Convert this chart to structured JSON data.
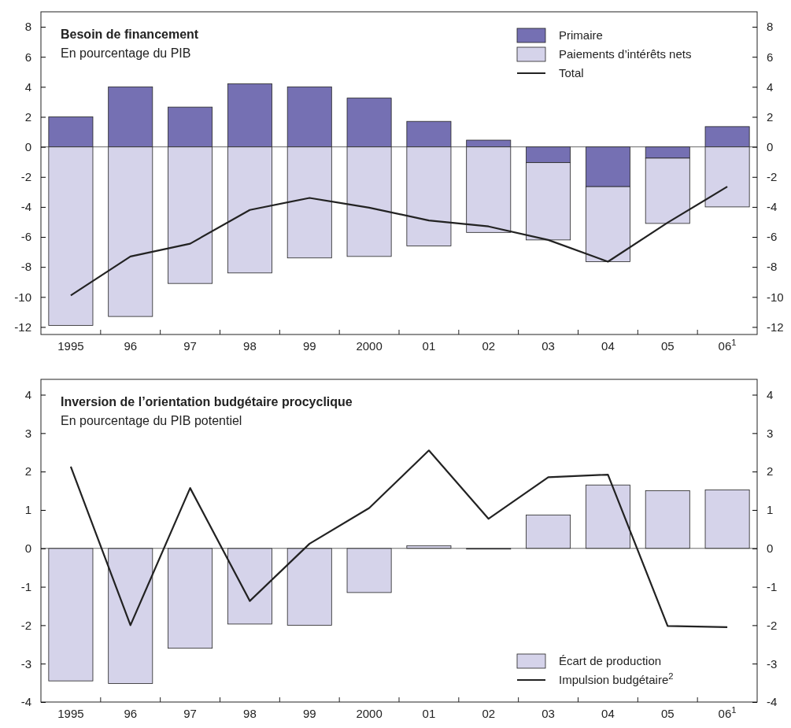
{
  "chart_data": [
    {
      "type": "bar",
      "title": "Besoin de financement",
      "subtitle": "En pourcentage du PIB",
      "stacked": true,
      "categories": [
        "1995",
        "96",
        "97",
        "98",
        "99",
        "2000",
        "01",
        "02",
        "03",
        "04",
        "05",
        "06$^{1}$"
      ],
      "series": [
        {
          "name": "Primaire",
          "color": "#7570b3",
          "values": [
            2.0,
            4.0,
            2.65,
            4.2,
            4.0,
            3.25,
            1.7,
            0.45,
            -1.05,
            -2.65,
            -0.75,
            1.35
          ]
        },
        {
          "name": "Paiements d’intérêts nets",
          "color": "#d5d3ea",
          "values": [
            -11.9,
            -11.3,
            -9.1,
            -8.4,
            -7.4,
            -7.3,
            -6.6,
            -5.7,
            -5.15,
            -5.0,
            -4.35,
            -4.0
          ]
        },
        {
          "name": "Total",
          "type": "line",
          "color": "#222222",
          "values": [
            -9.9,
            -7.3,
            -6.45,
            -4.2,
            -3.4,
            -4.05,
            -4.9,
            -5.3,
            -6.2,
            -7.65,
            -5.05,
            -2.65
          ]
        }
      ],
      "ylim": [
        -12.5,
        9
      ],
      "yticks": [
        -12,
        -10,
        -8,
        -6,
        -4,
        -2,
        0,
        2,
        4,
        6,
        8
      ],
      "y2lim": [
        -12.5,
        9
      ],
      "y2ticks": [
        -12,
        -10,
        -8,
        -6,
        -4,
        -2,
        0,
        2,
        4,
        6,
        8
      ],
      "ref_lines": [
        {
          "axis": "y",
          "value": 0,
          "color": "#444444"
        }
      ],
      "legend": "top right",
      "grid": false
    },
    {
      "type": "bar",
      "title": "Inversion de l’orientation budgétaire procyclique",
      "subtitle": "En pourcentage du PIB potentiel",
      "categories": [
        "1995",
        "96",
        "97",
        "98",
        "99",
        "2000",
        "01",
        "02",
        "03",
        "04",
        "05",
        "06$^{1}$"
      ],
      "series": [
        {
          "name": "Écart de production",
          "color": "#d5d3ea",
          "values": [
            -3.45,
            -3.52,
            -2.6,
            -1.97,
            -2.0,
            -1.15,
            0.07,
            -0.02,
            0.87,
            1.65,
            1.5,
            1.52
          ]
        },
        {
          "name": "Impulsion budgétaire$^{2}$",
          "type": "line",
          "color": "#222222",
          "values": [
            2.13,
            -2.0,
            1.57,
            -1.37,
            0.12,
            1.05,
            2.55,
            0.77,
            1.85,
            1.92,
            -2.02,
            -2.05
          ]
        }
      ],
      "ylim": [
        -4,
        4.4
      ],
      "yticks": [
        -4,
        -3,
        -2,
        -1,
        0,
        1,
        2,
        3,
        4
      ],
      "y2lim": [
        -4,
        4.4
      ],
      "y2ticks": [
        -4,
        -3,
        -2,
        -1,
        0,
        1,
        2,
        3,
        4
      ],
      "ref_lines": [
        {
          "axis": "y",
          "value": 0,
          "color": "#444444"
        }
      ],
      "legend": "bottom right",
      "grid": false
    }
  ]
}
